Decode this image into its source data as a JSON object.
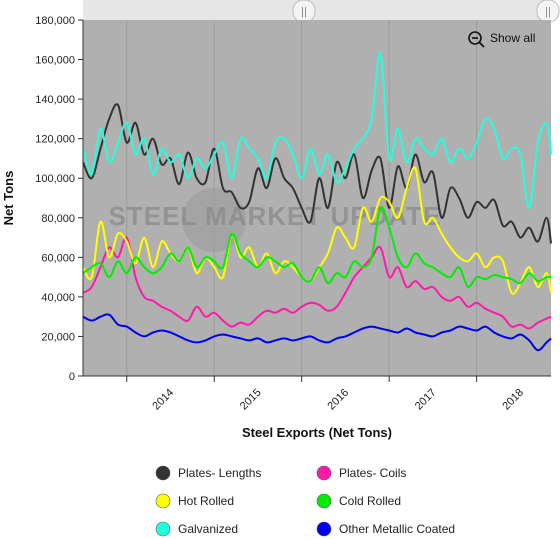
{
  "colors": {
    "plot_bg": "#b0b0b0",
    "navigator_bg": "#e6e6e6",
    "plates_lengths": "#333333",
    "plates_coils": "#ff1aaa",
    "hot_rolled": "#ffff00",
    "cold_rolled": "#00ee00",
    "galvanized": "#22ffdd",
    "other_metallic_coated": "#0000ee"
  },
  "zoom": {
    "label": "Show all",
    "icon": "zoom-out-icon"
  },
  "watermark": "STEEL MARKET UPDATE",
  "chart_data": {
    "type": "line",
    "title": "",
    "xlabel": "Steel Exports (Net Tons)",
    "ylabel": "Net Tons",
    "ylim": [
      0,
      180000
    ],
    "yticks": [
      0,
      20000,
      40000,
      60000,
      80000,
      100000,
      120000,
      140000,
      160000,
      180000
    ],
    "ytick_labels": [
      "0",
      "20,000",
      "40,000",
      "60,000",
      "80,000",
      "100,000",
      "120,000",
      "140,000",
      "160,000",
      "180,000"
    ],
    "xlim": [
      2013.5,
      2018.85
    ],
    "xticks": [
      2014,
      2015,
      2016,
      2017,
      2018
    ],
    "xtick_labels": [
      "2014",
      "2015",
      "2016",
      "2017",
      "2018"
    ],
    "grid": "vertical",
    "legend_position": "bottom",
    "series": [
      {
        "name": "Plates- Lengths",
        "color": "#333333",
        "x": [
          2013.5,
          2013.6,
          2013.7,
          2013.8,
          2013.9,
          2014.0,
          2014.1,
          2014.2,
          2014.3,
          2014.4,
          2014.5,
          2014.6,
          2014.7,
          2014.8,
          2014.9,
          2015.0,
          2015.1,
          2015.2,
          2015.3,
          2015.4,
          2015.5,
          2015.6,
          2015.7,
          2015.8,
          2015.9,
          2016.0,
          2016.1,
          2016.2,
          2016.3,
          2016.4,
          2016.5,
          2016.6,
          2016.7,
          2016.8,
          2016.9,
          2017.0,
          2017.1,
          2017.2,
          2017.3,
          2017.4,
          2017.5,
          2017.6,
          2017.7,
          2017.8,
          2017.9,
          2018.0,
          2018.1,
          2018.2,
          2018.3,
          2018.4,
          2018.5,
          2018.6,
          2018.7,
          2018.8,
          2018.85
        ],
        "values": [
          108000,
          100000,
          115000,
          130000,
          137000,
          118000,
          128000,
          112000,
          120000,
          107000,
          110000,
          97000,
          113000,
          100000,
          98000,
          115000,
          95000,
          93000,
          85000,
          88000,
          105000,
          95000,
          110000,
          100000,
          95000,
          85000,
          78000,
          100000,
          85000,
          108000,
          100000,
          112000,
          90000,
          104000,
          110000,
          85000,
          106000,
          95000,
          112000,
          98000,
          103000,
          80000,
          95000,
          90000,
          80000,
          88000,
          85000,
          89000,
          76000,
          78000,
          70000,
          75000,
          68000,
          80000,
          67000
        ]
      },
      {
        "name": "Plates- Coils",
        "color": "#ff1aaa",
        "x": [
          2013.5,
          2013.6,
          2013.7,
          2013.8,
          2013.9,
          2014.0,
          2014.1,
          2014.2,
          2014.3,
          2014.4,
          2014.5,
          2014.6,
          2014.7,
          2014.8,
          2014.9,
          2015.0,
          2015.1,
          2015.2,
          2015.3,
          2015.4,
          2015.5,
          2015.6,
          2015.7,
          2015.8,
          2015.9,
          2016.0,
          2016.1,
          2016.2,
          2016.3,
          2016.4,
          2016.5,
          2016.6,
          2016.7,
          2016.8,
          2016.9,
          2017.0,
          2017.1,
          2017.2,
          2017.3,
          2017.4,
          2017.5,
          2017.6,
          2017.7,
          2017.8,
          2017.9,
          2018.0,
          2018.1,
          2018.2,
          2018.3,
          2018.4,
          2018.5,
          2018.6,
          2018.7,
          2018.8,
          2018.85
        ],
        "values": [
          42000,
          45000,
          55000,
          65000,
          60000,
          70000,
          50000,
          40000,
          38000,
          35000,
          33000,
          30000,
          28000,
          35000,
          30000,
          32000,
          28000,
          25000,
          27000,
          26000,
          30000,
          33000,
          32000,
          34000,
          32000,
          35000,
          37000,
          36000,
          33000,
          35000,
          42000,
          50000,
          55000,
          60000,
          65000,
          50000,
          55000,
          45000,
          48000,
          44000,
          45000,
          40000,
          38000,
          40000,
          35000,
          37000,
          34000,
          32000,
          30000,
          25000,
          26000,
          24000,
          27000,
          29000,
          30000
        ]
      },
      {
        "name": "Hot Rolled",
        "color": "#ffff00",
        "x": [
          2013.5,
          2013.6,
          2013.7,
          2013.8,
          2013.9,
          2014.0,
          2014.1,
          2014.2,
          2014.3,
          2014.4,
          2014.5,
          2014.6,
          2014.7,
          2014.8,
          2014.9,
          2015.0,
          2015.1,
          2015.2,
          2015.3,
          2015.4,
          2015.5,
          2015.6,
          2015.7,
          2015.8,
          2015.9,
          2016.0,
          2016.1,
          2016.2,
          2016.3,
          2016.4,
          2016.5,
          2016.6,
          2016.7,
          2016.8,
          2016.9,
          2017.0,
          2017.1,
          2017.2,
          2017.3,
          2017.4,
          2017.5,
          2017.6,
          2017.7,
          2017.8,
          2017.9,
          2018.0,
          2018.1,
          2018.2,
          2018.3,
          2018.4,
          2018.5,
          2018.6,
          2018.7,
          2018.8,
          2018.85
        ],
        "values": [
          55000,
          50000,
          78000,
          60000,
          72000,
          68000,
          57000,
          70000,
          55000,
          68000,
          62000,
          58000,
          65000,
          52000,
          60000,
          55000,
          50000,
          72000,
          60000,
          65000,
          55000,
          62000,
          52000,
          58000,
          55000,
          50000,
          48000,
          55000,
          62000,
          75000,
          70000,
          65000,
          85000,
          78000,
          90000,
          88000,
          80000,
          95000,
          105000,
          78000,
          80000,
          72000,
          65000,
          60000,
          58000,
          62000,
          55000,
          60000,
          58000,
          42000,
          47000,
          55000,
          45000,
          52000,
          42000
        ]
      },
      {
        "name": "Cold Rolled",
        "color": "#00ee00",
        "x": [
          2013.5,
          2013.6,
          2013.7,
          2013.8,
          2013.9,
          2014.0,
          2014.1,
          2014.2,
          2014.3,
          2014.4,
          2014.5,
          2014.6,
          2014.7,
          2014.8,
          2014.9,
          2015.0,
          2015.1,
          2015.2,
          2015.3,
          2015.4,
          2015.5,
          2015.6,
          2015.7,
          2015.8,
          2015.9,
          2016.0,
          2016.1,
          2016.2,
          2016.3,
          2016.4,
          2016.5,
          2016.6,
          2016.7,
          2016.8,
          2016.9,
          2017.0,
          2017.1,
          2017.2,
          2017.3,
          2017.4,
          2017.5,
          2017.6,
          2017.7,
          2017.8,
          2017.9,
          2018.0,
          2018.1,
          2018.2,
          2018.3,
          2018.4,
          2018.5,
          2018.6,
          2018.7,
          2018.8,
          2018.85
        ],
        "values": [
          52000,
          55000,
          57000,
          50000,
          58000,
          52000,
          60000,
          55000,
          52000,
          55000,
          62000,
          58000,
          65000,
          55000,
          60000,
          58000,
          55000,
          72000,
          62000,
          58000,
          55000,
          60000,
          58000,
          55000,
          57000,
          50000,
          48000,
          55000,
          47000,
          52000,
          50000,
          58000,
          55000,
          60000,
          85000,
          75000,
          60000,
          55000,
          62000,
          57000,
          55000,
          52000,
          50000,
          55000,
          45000,
          50000,
          49000,
          51000,
          50000,
          49000,
          47000,
          52000,
          48000,
          50000,
          50000
        ]
      },
      {
        "name": "Galvanized",
        "color": "#22ffdd",
        "x": [
          2013.5,
          2013.6,
          2013.7,
          2013.8,
          2013.9,
          2014.0,
          2014.1,
          2014.2,
          2014.3,
          2014.4,
          2014.5,
          2014.6,
          2014.7,
          2014.8,
          2014.9,
          2015.0,
          2015.1,
          2015.2,
          2015.3,
          2015.4,
          2015.5,
          2015.6,
          2015.7,
          2015.8,
          2015.9,
          2016.0,
          2016.1,
          2016.2,
          2016.3,
          2016.4,
          2016.5,
          2016.6,
          2016.7,
          2016.8,
          2016.9,
          2017.0,
          2017.1,
          2017.2,
          2017.3,
          2017.4,
          2017.5,
          2017.6,
          2017.7,
          2017.8,
          2017.9,
          2018.0,
          2018.1,
          2018.2,
          2018.3,
          2018.4,
          2018.5,
          2018.6,
          2018.7,
          2018.8,
          2018.85
        ],
        "values": [
          115000,
          102000,
          125000,
          108000,
          118000,
          128000,
          112000,
          120000,
          102000,
          115000,
          108000,
          112000,
          100000,
          110000,
          105000,
          112000,
          118000,
          100000,
          120000,
          115000,
          110000,
          100000,
          118000,
          120000,
          112000,
          100000,
          115000,
          102000,
          112000,
          98000,
          105000,
          115000,
          120000,
          130000,
          163000,
          110000,
          125000,
          108000,
          120000,
          115000,
          112000,
          120000,
          108000,
          115000,
          110000,
          118000,
          130000,
          125000,
          110000,
          115000,
          112000,
          85000,
          118000,
          128000,
          112000
        ]
      },
      {
        "name": "Other Metallic Coated",
        "color": "#0000ee",
        "x": [
          2013.5,
          2013.6,
          2013.7,
          2013.8,
          2013.9,
          2014.0,
          2014.1,
          2014.2,
          2014.3,
          2014.4,
          2014.5,
          2014.6,
          2014.7,
          2014.8,
          2014.9,
          2015.0,
          2015.1,
          2015.2,
          2015.3,
          2015.4,
          2015.5,
          2015.6,
          2015.7,
          2015.8,
          2015.9,
          2016.0,
          2016.1,
          2016.2,
          2016.3,
          2016.4,
          2016.5,
          2016.6,
          2016.7,
          2016.8,
          2016.9,
          2017.0,
          2017.1,
          2017.2,
          2017.3,
          2017.4,
          2017.5,
          2017.6,
          2017.7,
          2017.8,
          2017.9,
          2018.0,
          2018.1,
          2018.2,
          2018.3,
          2018.4,
          2018.5,
          2018.6,
          2018.7,
          2018.8,
          2018.85
        ],
        "values": [
          30000,
          28000,
          30000,
          31000,
          26000,
          25000,
          22000,
          20000,
          22000,
          23000,
          22000,
          20000,
          18000,
          17000,
          18000,
          20000,
          21000,
          20000,
          19000,
          18000,
          19000,
          17000,
          18000,
          19000,
          18000,
          19000,
          20000,
          18000,
          17000,
          19000,
          20000,
          22000,
          24000,
          25000,
          24000,
          23000,
          22000,
          24000,
          22000,
          21000,
          20000,
          22000,
          23000,
          25000,
          24000,
          23000,
          25000,
          22000,
          20000,
          19000,
          21000,
          18000,
          13000,
          17000,
          19000
        ]
      }
    ]
  }
}
